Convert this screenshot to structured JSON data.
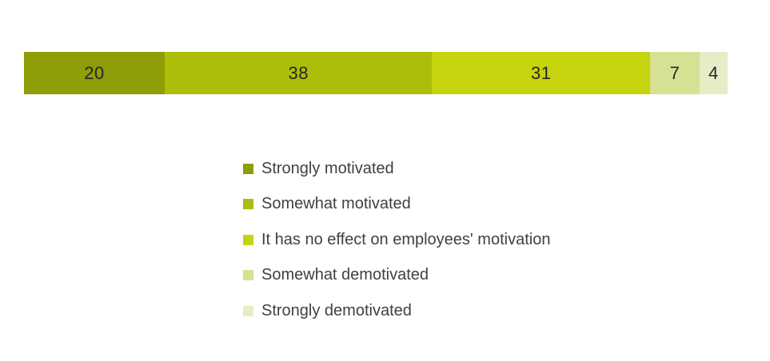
{
  "chart_data": {
    "type": "bar",
    "variant": "horizontal-stacked",
    "title": "",
    "xlabel": "",
    "ylabel": "",
    "total": 100,
    "axis_visible": false,
    "grid": false,
    "legend_position": "below-center",
    "value_label_color": "#262626",
    "legend_text_color": "#404040",
    "background_color": "#ffffff",
    "segments": [
      {
        "label": "Strongly motivated",
        "value": 20,
        "color": "#8f9d06"
      },
      {
        "label": "Somewhat motivated",
        "value": 38,
        "color": "#aebd0a"
      },
      {
        "label": "It has no effect on employees' motivation",
        "value": 31,
        "color": "#c6d30f"
      },
      {
        "label": "Somewhat demotivated",
        "value": 7,
        "color": "#d6e194"
      },
      {
        "label": "Strongly demotivated",
        "value": 4,
        "color": "#e5edc6"
      }
    ]
  }
}
